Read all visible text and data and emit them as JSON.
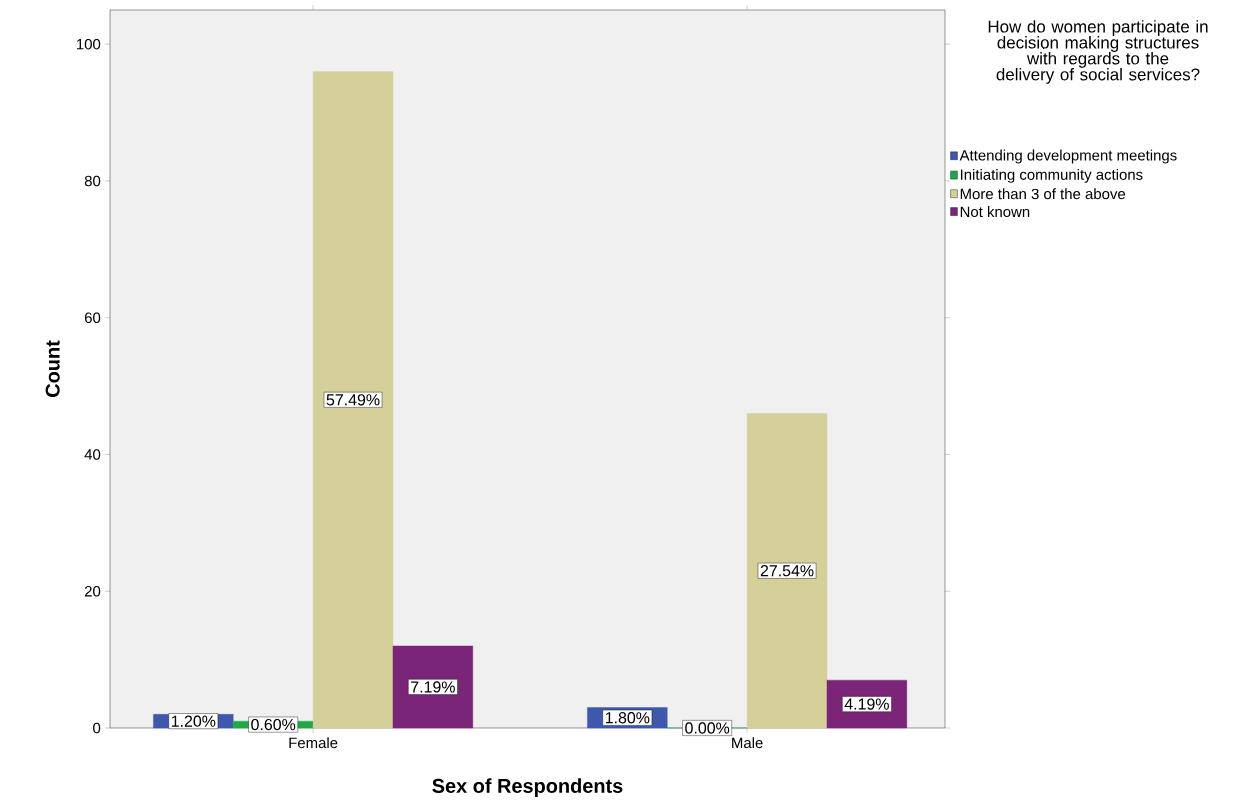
{
  "chart_data": {
    "type": "bar",
    "xlabel": "Sex of Respondents",
    "ylabel": "Count",
    "legend_title": "How do women participate in decision making structures with regards to the delivery of social services?",
    "categories": [
      "Female",
      "Male"
    ],
    "series": [
      {
        "name": "Attending development meetings",
        "color": "#3e58ac",
        "values": [
          2,
          3
        ]
      },
      {
        "name": "Initiating community actions",
        "color": "#1fa84a",
        "values": [
          1,
          0
        ]
      },
      {
        "name": "More than 3 of the above",
        "color": "#d5cf9a",
        "values": [
          96,
          46
        ]
      },
      {
        "name": "Not known",
        "color": "#7b2579",
        "values": [
          12,
          7
        ]
      }
    ],
    "annotations": [
      "1.20%",
      "0.60%",
      "57.49%",
      "7.19%",
      "1.80%",
      "0.00%",
      "27.54%",
      "4.19%"
    ],
    "ylim": [
      0,
      105
    ],
    "yticks": [
      0,
      20,
      40,
      60,
      80,
      100
    ],
    "grid": false,
    "legend": "right"
  }
}
